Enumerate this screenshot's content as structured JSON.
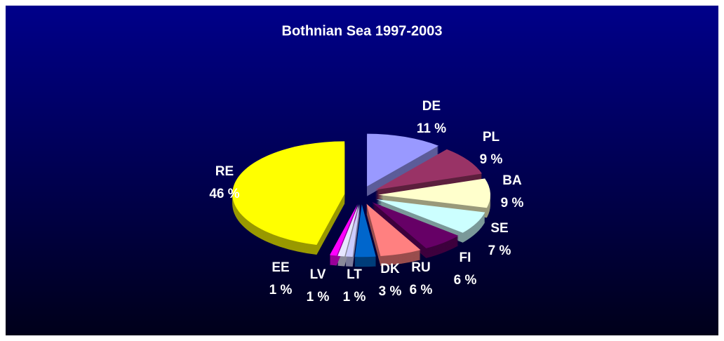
{
  "chart_data": {
    "type": "pie",
    "title": "Bothnian Sea 1997-2003",
    "categories": [
      "DE",
      "PL",
      "BA",
      "SE",
      "FI",
      "RU",
      "DK",
      "LT",
      "LV",
      "EE",
      "RE"
    ],
    "values": [
      11,
      9,
      9,
      7,
      6,
      6,
      3,
      1,
      1,
      1,
      46
    ],
    "value_labels": [
      "11 %",
      "9 %",
      "9 %",
      "7 %",
      "6 %",
      "6 %",
      "3 %",
      "1 %",
      "1 %",
      "1 %",
      "46 %"
    ],
    "colors": [
      "#9999ff",
      "#993366",
      "#ffffcc",
      "#ccffff",
      "#660066",
      "#ff8080",
      "#0066cc",
      "#ccccff",
      "#e6e6ff",
      "#ff00ff",
      "#ffff00"
    ],
    "three_d": true,
    "exploded": true
  }
}
